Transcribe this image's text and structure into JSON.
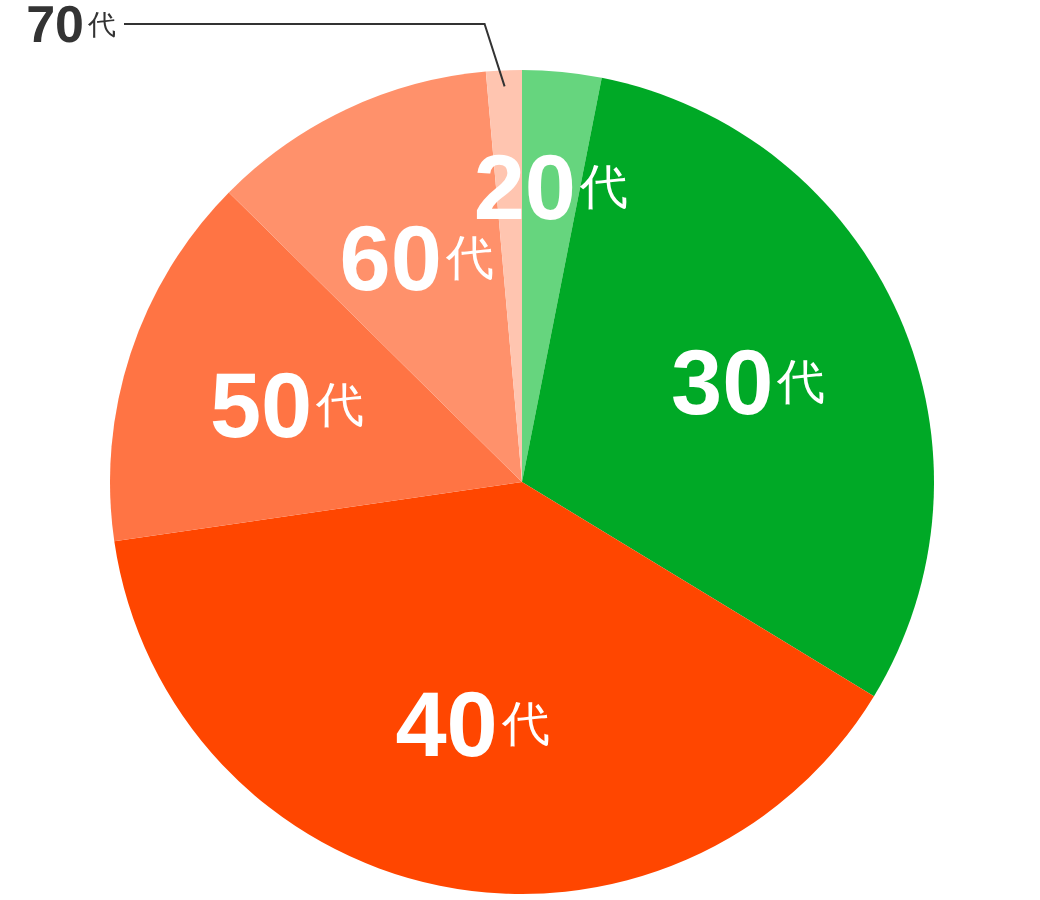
{
  "chart_data": {
    "type": "pie",
    "categories": [
      "20代",
      "30代",
      "40代",
      "50代",
      "60代",
      "70代"
    ],
    "values": [
      3.1,
      30.6,
      39.0,
      14.7,
      11.2,
      1.4
    ],
    "colors": [
      "#66d57e",
      "#00a926",
      "#ff4600",
      "#ff7444",
      "#ff916b",
      "#ffc5b0"
    ]
  }
}
